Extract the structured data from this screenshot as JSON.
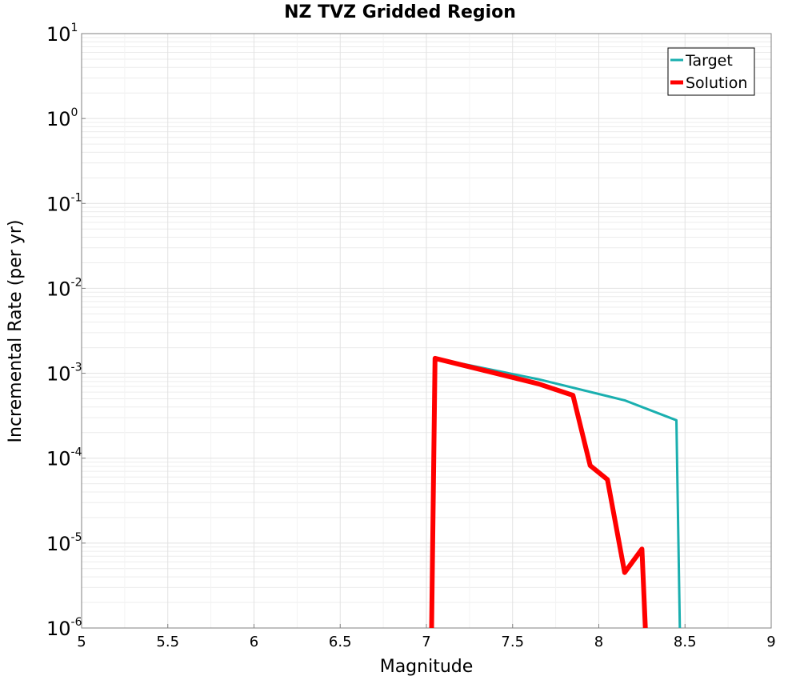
{
  "chart_data": {
    "type": "line",
    "title": "NZ TVZ Gridded Region",
    "xlabel": "Magnitude",
    "ylabel": "Incremental Rate (per yr)",
    "xlim": [
      5,
      9
    ],
    "ylim": [
      1e-06,
      10
    ],
    "yscale": "log",
    "x_ticks": [
      5,
      5.5,
      6,
      6.5,
      7,
      7.5,
      8,
      8.5,
      9
    ],
    "x_tick_labels": [
      "5",
      "5.5",
      "6",
      "6.5",
      "7",
      "7.5",
      "8",
      "8.5",
      "9"
    ],
    "y_tick_exponents": [
      -6,
      -5,
      -4,
      -3,
      -2,
      -1,
      0,
      1
    ],
    "y_tick_base": "10",
    "y_tick_exponent_labels": [
      "-6",
      "-5",
      "-4",
      "-3",
      "-2",
      "-1",
      "0",
      "1"
    ],
    "grid": true,
    "legend": "top-right",
    "series": [
      {
        "name": "Target",
        "color": "#1aafaf",
        "points": [
          [
            7.03,
            1e-06
          ],
          [
            7.05,
            0.0015
          ],
          [
            7.65,
            0.00085
          ],
          [
            8.15,
            0.00048
          ],
          [
            8.45,
            0.00028
          ],
          [
            8.47,
            1e-06
          ]
        ]
      },
      {
        "name": "Solution",
        "color": "#ff0000",
        "points": [
          [
            7.03,
            1e-06
          ],
          [
            7.05,
            0.0015
          ],
          [
            7.65,
            0.00075
          ],
          [
            7.85,
            0.00055
          ],
          [
            7.95,
            8.2e-05
          ],
          [
            8.05,
            5.6e-05
          ],
          [
            8.15,
            4.5e-06
          ],
          [
            8.25,
            8.5e-06
          ],
          [
            8.27,
            1e-06
          ]
        ]
      }
    ]
  }
}
